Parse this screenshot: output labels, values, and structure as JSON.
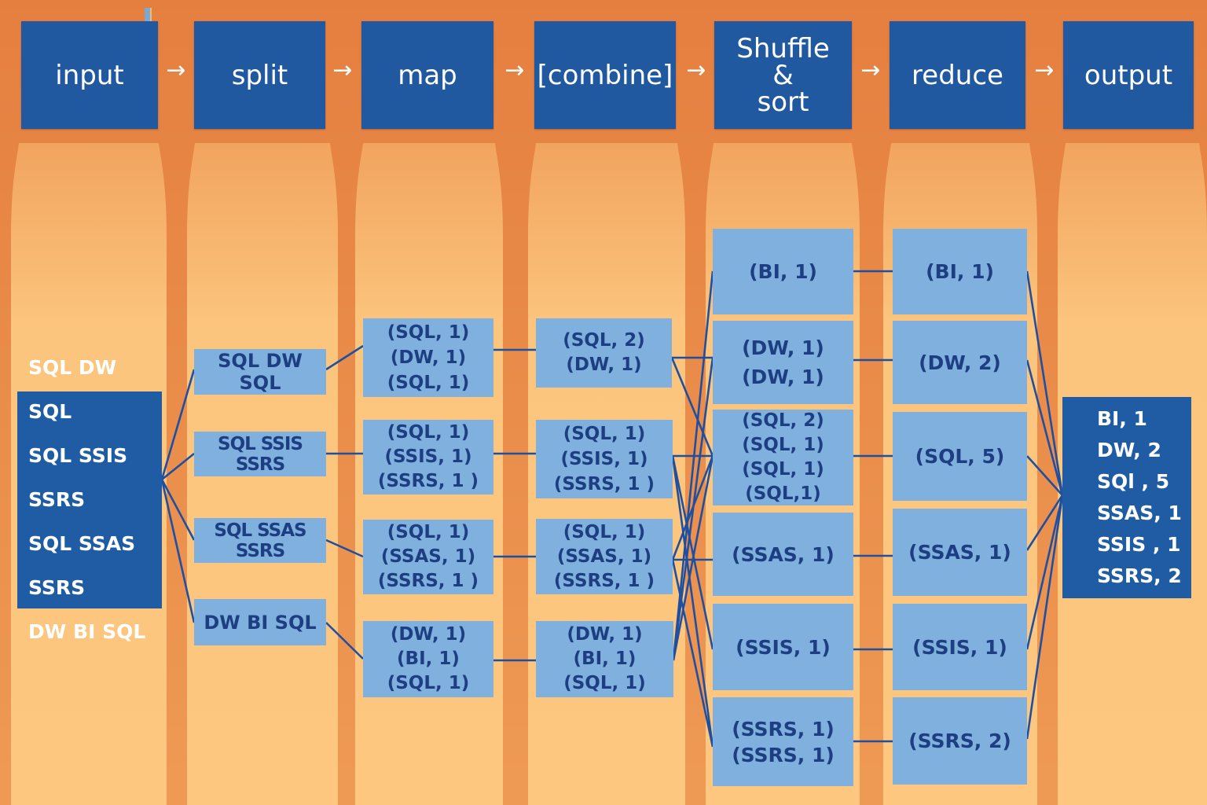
{
  "headers": [
    "input",
    "split",
    "map",
    "[combine]",
    "Shuffle\n&\nsort",
    "reduce",
    "output"
  ],
  "arrow_glyph": "→",
  "input_text": "SQL DW SQL\nSQL SSIS SSRS\nSQL SSAS SSRS\nDW BI SQL",
  "split": [
    "SQL DW SQL",
    "SQL SSIS SSRS",
    "SQL SSAS SSRS",
    "DW BI SQL"
  ],
  "map": [
    "(SQL, 1)\n(DW, 1)\n(SQL, 1)",
    "(SQL, 1)\n(SSIS, 1)\n(SSRS, 1 )",
    "(SQL, 1)\n(SSAS, 1)\n(SSRS, 1 )",
    "(DW, 1)\n(BI, 1)\n(SQL, 1)"
  ],
  "combine": [
    "(SQL, 2)\n(DW, 1)",
    "(SQL, 1)\n(SSIS, 1)\n(SSRS, 1 )",
    "(SQL, 1)\n(SSAS, 1)\n(SSRS, 1 )",
    "(DW, 1)\n(BI, 1)\n(SQL, 1)"
  ],
  "shuffle": [
    "(BI, 1)",
    "(DW, 1)\n(DW, 1)",
    "(SQL, 2)\n(SQL, 1)\n(SQL, 1)\n(SQL,1)",
    "(SSAS, 1)",
    "(SSIS, 1)",
    "(SSRS, 1)\n(SSRS, 1)"
  ],
  "reduce": [
    "(BI, 1)",
    "(DW,  2)",
    "(SQL, 5)",
    "(SSAS, 1)",
    "(SSIS, 1)",
    "(SSRS, 2)"
  ],
  "output_text": "BI, 1\nDW, 2\nSQl , 5\nSSAS, 1\nSSIS , 1\nSSRS, 2",
  "colors": {
    "header_fill": "#2059a0",
    "box_fill": "#7fb0de",
    "box_text": "#1d3f82",
    "line": "#1f4fa0",
    "background_top": "#e8894a",
    "background_column": "#fcc57e"
  }
}
